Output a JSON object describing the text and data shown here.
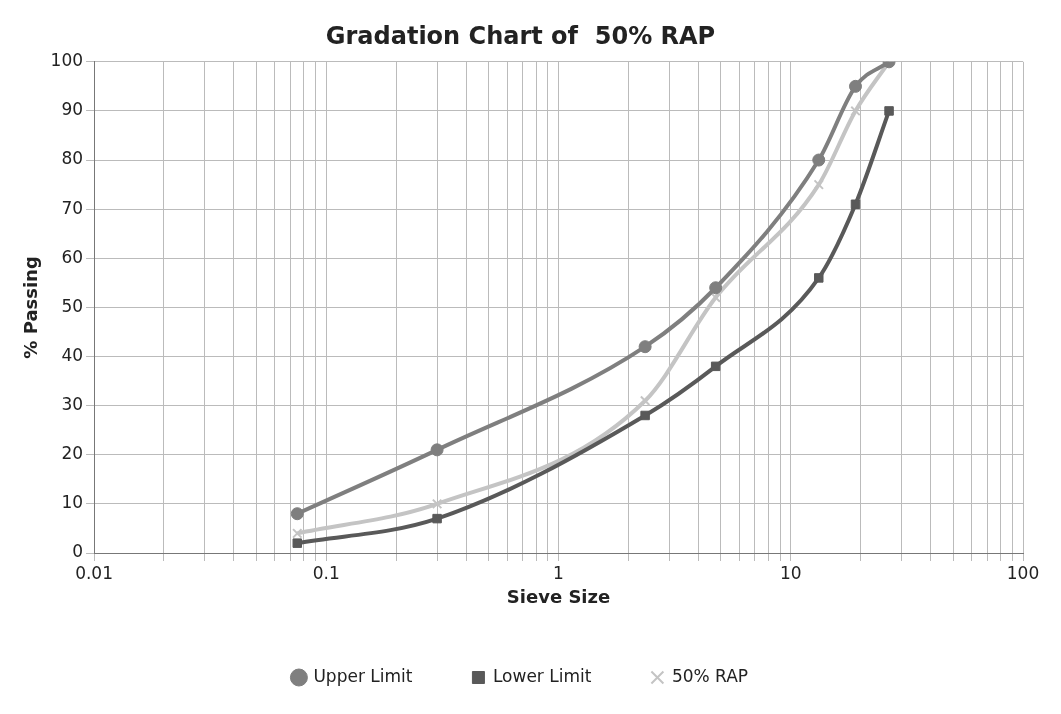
{
  "chart_data": {
    "type": "line",
    "title": "Gradation Chart of  50% RAP",
    "xlabel": "Sieve Size",
    "ylabel": "% Passing",
    "log": "x",
    "grid": true,
    "legend": "bottom",
    "x": [
      0.075,
      0.3,
      2.36,
      4.75,
      13.2,
      19,
      26.5
    ],
    "series": [
      {
        "name": "Upper Limit",
        "color": "#7f7f7f",
        "marker": "circle",
        "values": [
          8,
          21,
          42,
          54,
          80,
          95,
          100
        ]
      },
      {
        "name": "Lower Limit",
        "color": "#595959",
        "marker": "square",
        "values": [
          2,
          7,
          28,
          38,
          56,
          71,
          90
        ]
      },
      {
        "name": "50% RAP",
        "color": "#c4c4c4",
        "marker": "cross",
        "values": [
          4,
          10,
          31,
          52,
          75,
          90,
          100
        ]
      }
    ],
    "xlim": [
      0.01,
      100
    ],
    "xticks": [
      0.01,
      {
        "value": 0.02,
        "label": null
      },
      {
        "value": 0.03,
        "label": null
      },
      {
        "value": 0.04,
        "label": null
      },
      {
        "value": 0.05,
        "label": null
      },
      {
        "value": 0.06,
        "label": null
      },
      {
        "value": 0.07,
        "label": null
      },
      {
        "value": 0.08,
        "label": null
      },
      {
        "value": 0.09,
        "label": null
      },
      0.1,
      {
        "value": 0.2,
        "label": null
      },
      {
        "value": 0.3,
        "label": null
      },
      {
        "value": 0.4,
        "label": null
      },
      {
        "value": 0.5,
        "label": null
      },
      {
        "value": 0.6,
        "label": null
      },
      {
        "value": 0.7,
        "label": null
      },
      {
        "value": 0.8,
        "label": null
      },
      {
        "value": 0.9,
        "label": null
      },
      1,
      {
        "value": 2,
        "label": null
      },
      {
        "value": 3,
        "label": null
      },
      {
        "value": 4,
        "label": null
      },
      {
        "value": 5,
        "label": null
      },
      {
        "value": 6,
        "label": null
      },
      {
        "value": 7,
        "label": null
      },
      {
        "value": 8,
        "label": null
      },
      {
        "value": 9,
        "label": null
      },
      10,
      {
        "value": 20,
        "label": null
      },
      {
        "value": 30,
        "label": null
      },
      {
        "value": 40,
        "label": null
      },
      {
        "value": 50,
        "label": null
      },
      {
        "value": 60,
        "label": null
      },
      {
        "value": 70,
        "label": null
      },
      {
        "value": 80,
        "label": null
      },
      {
        "value": 90,
        "label": null
      },
      100
    ],
    "ylim": [
      0,
      100
    ],
    "yticks": [
      0,
      10,
      20,
      30,
      40,
      50,
      60,
      70,
      80,
      90,
      100
    ]
  }
}
